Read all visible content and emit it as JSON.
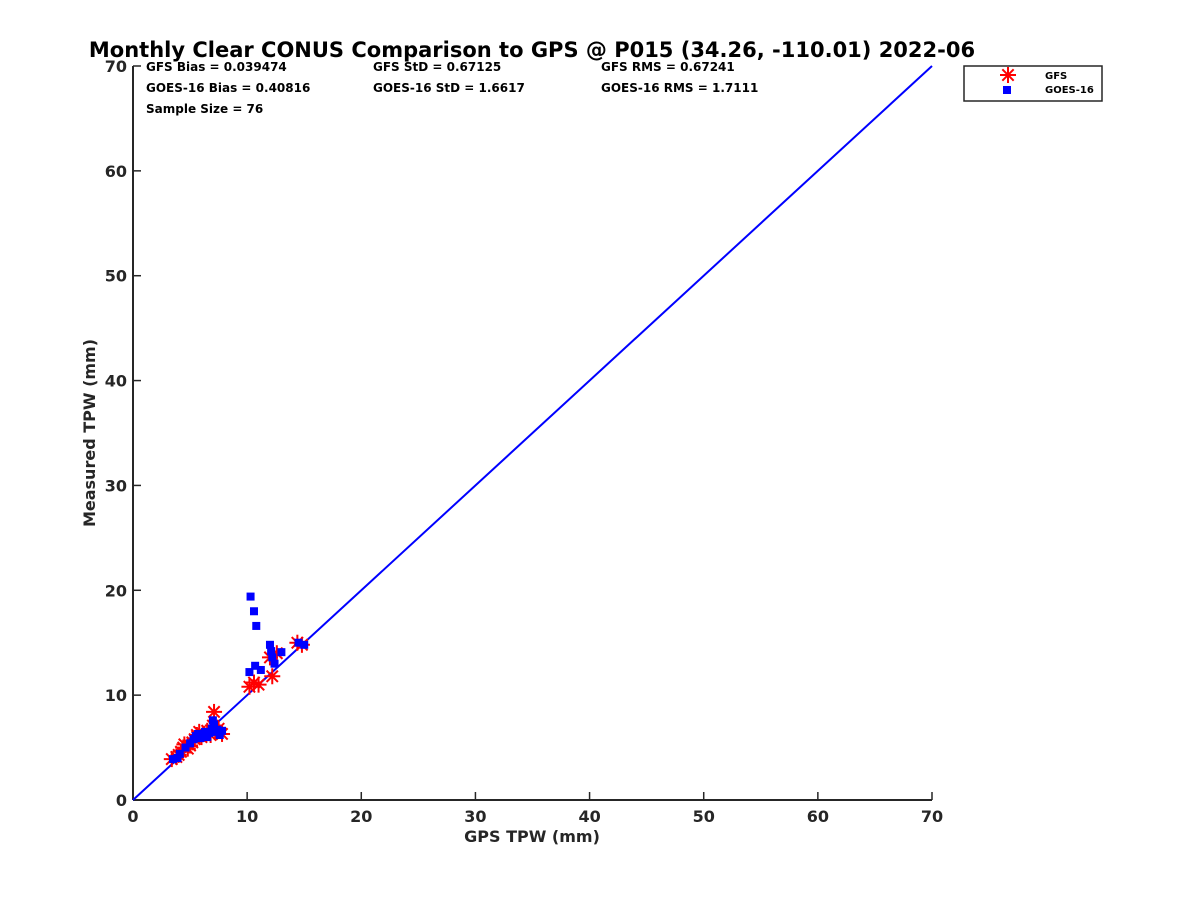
{
  "chart_data": {
    "type": "scatter",
    "title": "Monthly Clear CONUS Comparison to GPS @ P015 (34.26, -110.01) 2022-06",
    "xlabel": "GPS TPW (mm)",
    "ylabel": "Measured TPW (mm)",
    "xlim": [
      0,
      70
    ],
    "ylim": [
      0,
      70
    ],
    "xticks": [
      "0",
      "10",
      "20",
      "30",
      "40",
      "50",
      "60",
      "70"
    ],
    "yticks": [
      "0",
      "10",
      "20",
      "30",
      "40",
      "50",
      "60",
      "70"
    ],
    "grid": false,
    "legend_position": "outside top-right",
    "stats": {
      "gfs_bias": "GFS Bias = 0.039474",
      "gfs_std": "GFS StD = 0.67125",
      "gfs_rms": "GFS RMS = 0.67241",
      "goes_bias": "GOES-16 Bias = 0.40816",
      "goes_std": "GOES-16 StD = 1.6617",
      "goes_rms": "GOES-16 RMS = 1.7111",
      "sample_size": "Sample Size = 76"
    },
    "reference_line": {
      "name": "1:1",
      "color": "#0000ff",
      "x": [
        0,
        70
      ],
      "y": [
        0,
        70
      ]
    },
    "series": [
      {
        "name": "GFS",
        "marker": "asterisk",
        "color": "#ff0000",
        "points": [
          [
            3.4,
            3.9
          ],
          [
            3.8,
            4.1
          ],
          [
            4.0,
            4.3
          ],
          [
            4.2,
            4.6
          ],
          [
            4.4,
            5.0
          ],
          [
            4.5,
            5.3
          ],
          [
            4.8,
            4.9
          ],
          [
            5.0,
            5.2
          ],
          [
            5.2,
            5.5
          ],
          [
            5.4,
            5.8
          ],
          [
            5.6,
            6.2
          ],
          [
            5.8,
            6.5
          ],
          [
            6.0,
            6.0
          ],
          [
            6.2,
            6.3
          ],
          [
            6.5,
            6.6
          ],
          [
            6.8,
            6.2
          ],
          [
            7.0,
            7.1
          ],
          [
            7.1,
            8.4
          ],
          [
            7.2,
            6.5
          ],
          [
            7.5,
            6.8
          ],
          [
            7.8,
            6.3
          ],
          [
            10.2,
            10.8
          ],
          [
            10.6,
            11.2
          ],
          [
            11.0,
            11.0
          ],
          [
            12.2,
            11.8
          ],
          [
            12.0,
            13.6
          ],
          [
            12.6,
            14.0
          ],
          [
            14.4,
            15.0
          ],
          [
            14.8,
            14.8
          ]
        ]
      },
      {
        "name": "GOES-16",
        "marker": "square",
        "color": "#0000ff",
        "points": [
          [
            3.5,
            3.9
          ],
          [
            3.9,
            4.0
          ],
          [
            4.1,
            4.4
          ],
          [
            4.6,
            5.0
          ],
          [
            5.0,
            5.4
          ],
          [
            5.3,
            5.8
          ],
          [
            5.5,
            6.1
          ],
          [
            5.7,
            6.3
          ],
          [
            5.9,
            5.9
          ],
          [
            6.1,
            6.2
          ],
          [
            6.3,
            6.5
          ],
          [
            6.5,
            6.0
          ],
          [
            6.7,
            6.4
          ],
          [
            6.9,
            6.8
          ],
          [
            7.0,
            7.6
          ],
          [
            7.1,
            7.2
          ],
          [
            7.2,
            6.5
          ],
          [
            7.4,
            6.7
          ],
          [
            7.6,
            6.2
          ],
          [
            7.8,
            6.6
          ],
          [
            10.2,
            12.2
          ],
          [
            10.3,
            19.4
          ],
          [
            10.6,
            18.0
          ],
          [
            10.7,
            12.8
          ],
          [
            10.8,
            16.6
          ],
          [
            11.2,
            12.4
          ],
          [
            12.0,
            14.8
          ],
          [
            12.1,
            14.2
          ],
          [
            12.2,
            13.6
          ],
          [
            12.4,
            13.0
          ],
          [
            13.0,
            14.1
          ],
          [
            14.5,
            15.0
          ],
          [
            15.0,
            14.8
          ]
        ]
      }
    ]
  }
}
